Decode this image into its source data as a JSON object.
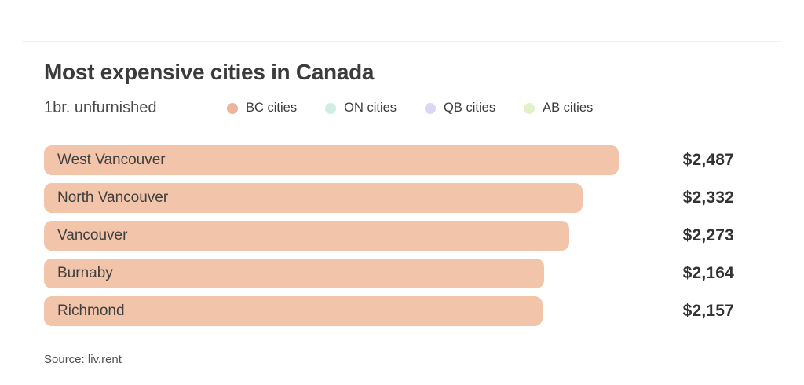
{
  "header": {
    "title": "Most expensive cities in Canada",
    "subtitle": "1br. unfurnished"
  },
  "legend": {
    "items": [
      {
        "label": "BC cities",
        "color": "#EFB49C"
      },
      {
        "label": "ON cities",
        "color": "#CEEDE5"
      },
      {
        "label": "QB cities",
        "color": "#DBD5F7"
      },
      {
        "label": "AB cities",
        "color": "#E4F1C8"
      }
    ]
  },
  "chart_data": {
    "type": "bar",
    "orientation": "horizontal",
    "title": "Most expensive cities in Canada",
    "subtitle": "1br. unfurnished",
    "categories": [
      "West Vancouver",
      "North Vancouver",
      "Vancouver",
      "Burnaby",
      "Richmond"
    ],
    "values": [
      2487,
      2332,
      2273,
      2164,
      2157
    ],
    "value_labels": [
      "$2,487",
      "$2,332",
      "$2,273",
      "$2,164",
      "$2,157"
    ],
    "series_name": "BC cities",
    "bar_color": "#F2C5AB",
    "xlim": [
      0,
      2487
    ],
    "grid": false,
    "legend_position": "top",
    "value_label_position": "right-of-chart"
  },
  "footer": {
    "source": "Source: liv.rent"
  }
}
